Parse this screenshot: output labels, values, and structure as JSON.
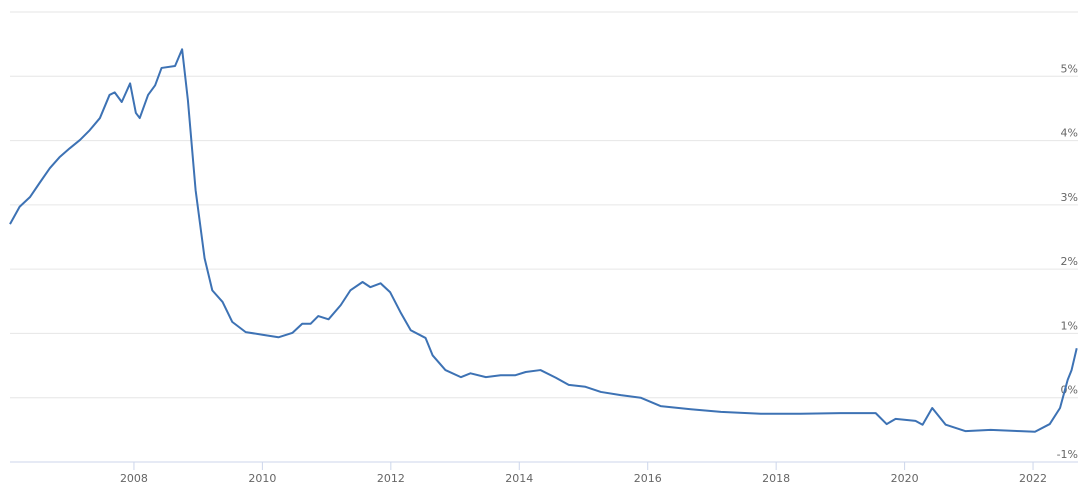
{
  "chart_data": {
    "type": "line",
    "x": [
      2006.07,
      2006.22,
      2006.38,
      2006.53,
      2006.69,
      2006.84,
      2007.0,
      2007.16,
      2007.31,
      2007.47,
      2007.62,
      2007.7,
      2007.81,
      2007.94,
      2008.03,
      2008.09,
      2008.22,
      2008.33,
      2008.43,
      2008.64,
      2008.75,
      2008.84,
      2008.96,
      2009.1,
      2009.22,
      2009.38,
      2009.53,
      2009.74,
      2010.0,
      2010.25,
      2010.47,
      2010.62,
      2010.75,
      2010.87,
      2011.03,
      2011.22,
      2011.37,
      2011.56,
      2011.68,
      2011.84,
      2011.99,
      2012.15,
      2012.31,
      2012.54,
      2012.65,
      2012.85,
      2013.09,
      2013.24,
      2013.48,
      2013.71,
      2013.94,
      2014.1,
      2014.33,
      2014.57,
      2014.77,
      2015.03,
      2015.27,
      2015.58,
      2015.89,
      2016.2,
      2016.67,
      2017.14,
      2017.76,
      2018.38,
      2019.0,
      2019.55,
      2019.72,
      2019.86,
      2020.17,
      2020.28,
      2020.43,
      2020.64,
      2020.95,
      2021.34,
      2021.8,
      2022.03,
      2022.26,
      2022.42,
      2022.54,
      2022.6,
      2022.68
    ],
    "series": [
      {
        "color": "#3d72b4",
        "values": [
          2.7,
          2.97,
          3.12,
          3.34,
          3.57,
          3.74,
          3.88,
          4.01,
          4.16,
          4.35,
          4.71,
          4.75,
          4.6,
          4.89,
          4.43,
          4.35,
          4.71,
          4.86,
          5.13,
          5.16,
          5.42,
          4.63,
          3.23,
          2.17,
          1.67,
          1.49,
          1.18,
          1.02,
          0.98,
          0.94,
          1.01,
          1.15,
          1.15,
          1.27,
          1.22,
          1.44,
          1.67,
          1.8,
          1.72,
          1.78,
          1.64,
          1.33,
          1.05,
          0.93,
          0.66,
          0.43,
          0.32,
          0.38,
          0.32,
          0.35,
          0.35,
          0.4,
          0.43,
          0.31,
          0.2,
          0.17,
          0.09,
          0.04,
          0.0,
          -0.13,
          -0.18,
          -0.22,
          -0.25,
          -0.25,
          -0.24,
          -0.24,
          -0.41,
          -0.33,
          -0.36,
          -0.42,
          -0.16,
          -0.42,
          -0.52,
          -0.5,
          -0.52,
          -0.53,
          -0.41,
          -0.16,
          0.28,
          0.43,
          0.77
        ]
      }
    ],
    "xlim": [
      2006.07,
      2022.7
    ],
    "xticks": [
      2008,
      2010,
      2012,
      2014,
      2016,
      2018,
      2020,
      2022
    ],
    "ylim": [
      -1,
      6
    ],
    "yticks": [
      {
        "value": -1,
        "label": "-1%"
      },
      {
        "value": 0,
        "label": "0%"
      },
      {
        "value": 1,
        "label": "1%"
      },
      {
        "value": 2,
        "label": "2%"
      },
      {
        "value": 3,
        "label": "3%"
      },
      {
        "value": 4,
        "label": "4%"
      },
      {
        "value": 5,
        "label": "5%"
      }
    ],
    "grid": true
  }
}
